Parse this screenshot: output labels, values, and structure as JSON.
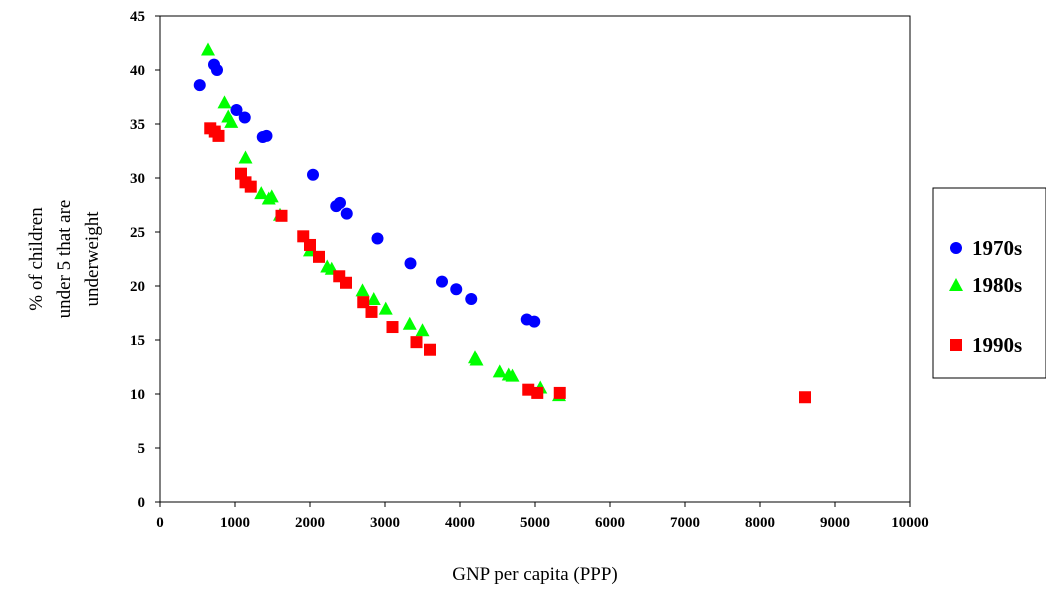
{
  "chart_data": {
    "type": "scatter",
    "title": "",
    "xlabel": "GNP per capita (PPP)",
    "ylabel_lines": [
      "% of children",
      "under 5 that are",
      "underweight"
    ],
    "xlim": [
      0,
      10000
    ],
    "ylim": [
      0,
      45
    ],
    "xticks": [
      "0",
      "1000",
      "2000",
      "3000",
      "4000",
      "5000",
      "6000",
      "7000",
      "8000",
      "9000",
      "10000"
    ],
    "yticks": [
      "0",
      "5",
      "10",
      "15",
      "20",
      "25",
      "30",
      "35",
      "40",
      "45"
    ],
    "grid": false,
    "legend_position": "right",
    "series": [
      {
        "name": "1970s",
        "marker": "circle",
        "color": "#0000ff",
        "points": [
          [
            530,
            38.6
          ],
          [
            720,
            40.5
          ],
          [
            760,
            40.0
          ],
          [
            1020,
            36.3
          ],
          [
            1130,
            35.6
          ],
          [
            1370,
            33.8
          ],
          [
            1420,
            33.9
          ],
          [
            2040,
            30.3
          ],
          [
            2350,
            27.4
          ],
          [
            2400,
            27.7
          ],
          [
            2490,
            26.7
          ],
          [
            2900,
            24.4
          ],
          [
            3340,
            22.1
          ],
          [
            3760,
            20.4
          ],
          [
            3950,
            19.7
          ],
          [
            4150,
            18.8
          ],
          [
            4890,
            16.9
          ],
          [
            4990,
            16.7
          ]
        ]
      },
      {
        "name": "1980s",
        "marker": "triangle",
        "color": "#00ff00",
        "points": [
          [
            640,
            41.9
          ],
          [
            860,
            37.0
          ],
          [
            910,
            35.7
          ],
          [
            950,
            35.2
          ],
          [
            1140,
            31.9
          ],
          [
            1350,
            28.6
          ],
          [
            1450,
            28.1
          ],
          [
            1490,
            28.3
          ],
          [
            1600,
            26.6
          ],
          [
            2000,
            23.3
          ],
          [
            2230,
            21.8
          ],
          [
            2290,
            21.6
          ],
          [
            2700,
            19.6
          ],
          [
            2850,
            18.8
          ],
          [
            3010,
            17.9
          ],
          [
            3330,
            16.5
          ],
          [
            3500,
            15.9
          ],
          [
            4200,
            13.4
          ],
          [
            4220,
            13.2
          ],
          [
            4530,
            12.1
          ],
          [
            4650,
            11.8
          ],
          [
            4700,
            11.7
          ],
          [
            5070,
            10.6
          ],
          [
            5320,
            9.9
          ]
        ]
      },
      {
        "name": "1990s",
        "marker": "square",
        "color": "#ff0000",
        "points": [
          [
            670,
            34.6
          ],
          [
            730,
            34.3
          ],
          [
            780,
            33.9
          ],
          [
            1080,
            30.4
          ],
          [
            1140,
            29.6
          ],
          [
            1210,
            29.2
          ],
          [
            1620,
            26.5
          ],
          [
            1910,
            24.6
          ],
          [
            2000,
            23.8
          ],
          [
            2120,
            22.7
          ],
          [
            2390,
            20.9
          ],
          [
            2480,
            20.3
          ],
          [
            2710,
            18.5
          ],
          [
            2820,
            17.6
          ],
          [
            3100,
            16.2
          ],
          [
            3420,
            14.8
          ],
          [
            3600,
            14.1
          ],
          [
            4910,
            10.4
          ],
          [
            5030,
            10.1
          ],
          [
            5330,
            10.1
          ],
          [
            8600,
            9.7
          ]
        ]
      }
    ]
  }
}
